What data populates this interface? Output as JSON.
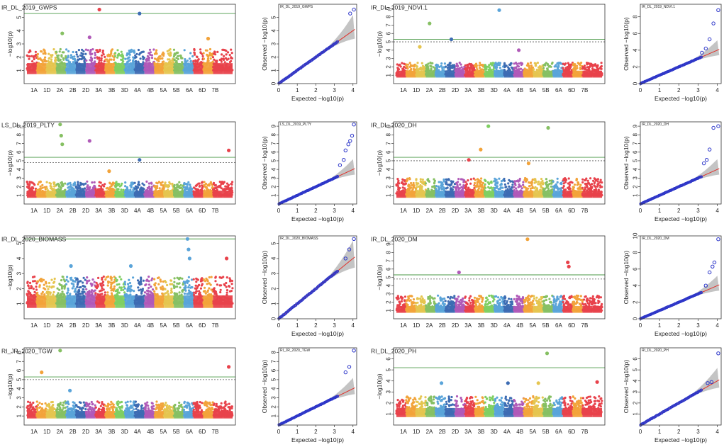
{
  "figure_title": "",
  "colors": {
    "chromosomes": [
      "#e8424b",
      "#f2a33a",
      "#e5c54f",
      "#86c063",
      "#5aa4d9",
      "#3d6cb3",
      "#b05ab8",
      "#e8424b",
      "#f2a33a",
      "#7fcf62",
      "#5aa4d9",
      "#3d6cb3",
      "#b05ab8",
      "#f2a33a",
      "#e5c54f",
      "#86c063",
      "#5aa4d9",
      "#e8424b",
      "#f2a33a",
      "#e8424b",
      "#e8424b"
    ],
    "threshold_green": "#4a9a46",
    "threshold_dotted": "#555555",
    "qq_points": "#2a34c9",
    "qq_line": "#e0302a",
    "qq_band": "#b5b5b5"
  },
  "chart_data": [
    {
      "type": "scatter",
      "subtype": "manhattan",
      "title": "IR_DL_2019_GWPS",
      "ylabel": "−log10(p)",
      "ylim": [
        0,
        6
      ],
      "yticks": [
        1,
        2,
        3,
        4,
        5
      ],
      "xlabels": [
        "1A",
        "1D",
        "2A",
        "2B",
        "2D",
        "3A",
        "3B",
        "3D",
        "4A",
        "4B",
        "5A",
        "5B",
        "6A",
        "6D",
        "7B"
      ],
      "threshold": 5.3,
      "suggestive": null,
      "background_max": 2.6,
      "peaks": [
        {
          "chr": 7,
          "value": 5.6
        },
        {
          "chr": 11,
          "value": 5.3
        },
        {
          "chr": 3,
          "value": 3.8
        },
        {
          "chr": 6,
          "value": 3.5
        },
        {
          "chr": 18,
          "value": 3.4
        }
      ]
    },
    {
      "type": "scatter",
      "subtype": "qq",
      "title": "IR_DL_2019_GWPS",
      "xlabel": "Expected −log10(p)",
      "ylabel": "Observed −log10(p)",
      "xlim": [
        0,
        4.2
      ],
      "ylim": [
        0,
        6
      ],
      "xticks": [
        0,
        1,
        2,
        3,
        4
      ],
      "yticks": [
        0,
        1,
        2,
        3,
        4,
        5
      ],
      "outliers": [
        [
          3.85,
          5.3
        ],
        [
          4.05,
          5.6
        ]
      ]
    },
    {
      "type": "scatter",
      "subtype": "manhattan",
      "title": "IR_DL_2019_NDVI.1",
      "ylabel": "−log10(p)",
      "ylim": [
        0,
        9.5
      ],
      "yticks": [
        1,
        2,
        3,
        4,
        5,
        6,
        7,
        8,
        9
      ],
      "xlabels": [
        "1A",
        "1D",
        "2A",
        "2B",
        "2D",
        "3A",
        "3B",
        "3D",
        "4A",
        "4B",
        "5A",
        "5B",
        "6A",
        "6D",
        "7B"
      ],
      "threshold": 5.3,
      "suggestive": 5.0,
      "background_max": 2.5,
      "peaks": [
        {
          "chr": 3,
          "value": 7.2
        },
        {
          "chr": 10,
          "value": 8.8
        },
        {
          "chr": 5,
          "value": 5.3
        },
        {
          "chr": 2,
          "value": 4.4
        },
        {
          "chr": 12,
          "value": 4.0
        }
      ]
    },
    {
      "type": "scatter",
      "subtype": "qq",
      "title": "IR_DL_2019_NDVI.1",
      "xlabel": "Expected −log10(p)",
      "ylabel": "Observed −log10(p)",
      "xlim": [
        0,
        4.2
      ],
      "ylim": [
        0,
        9.5
      ],
      "xticks": [
        0,
        1,
        2,
        3,
        4
      ],
      "yticks": [
        0,
        2,
        4,
        6,
        8
      ],
      "outliers": [
        [
          3.2,
          3.7
        ],
        [
          3.4,
          4.2
        ],
        [
          3.6,
          5.3
        ],
        [
          3.8,
          7.2
        ],
        [
          4.05,
          8.8
        ]
      ]
    },
    {
      "type": "scatter",
      "subtype": "manhattan",
      "title": "LS_DL_2019_PLTY",
      "ylabel": "−log10(p)",
      "ylim": [
        0,
        9.5
      ],
      "yticks": [
        1,
        2,
        3,
        4,
        5,
        6,
        7,
        8,
        9
      ],
      "xlabels": [
        "1A",
        "1D",
        "2A",
        "2B",
        "2D",
        "3A",
        "3B",
        "3D",
        "4A",
        "4B",
        "5A",
        "5B",
        "6A",
        "6D",
        "7B"
      ],
      "threshold": 5.4,
      "suggestive": 4.8,
      "background_max": 2.6,
      "peaks": [
        {
          "chr": 3,
          "value": 9.2
        },
        {
          "chr": 3,
          "value": 7.9
        },
        {
          "chr": 3,
          "value": 6.9
        },
        {
          "chr": 6,
          "value": 7.3
        },
        {
          "chr": 11,
          "value": 5.1
        },
        {
          "chr": 20,
          "value": 6.2
        },
        {
          "chr": 8,
          "value": 3.8
        }
      ]
    },
    {
      "type": "scatter",
      "subtype": "qq",
      "title": "LS_DL_2019_PLTY",
      "xlabel": "Expected −log10(p)",
      "ylabel": "Observed −log10(p)",
      "xlim": [
        0,
        4.2
      ],
      "ylim": [
        0,
        9.5
      ],
      "xticks": [
        0,
        1,
        2,
        3,
        4
      ],
      "yticks": [
        1,
        2,
        3,
        4,
        5,
        6,
        7,
        8,
        9
      ],
      "outliers": [
        [
          3.3,
          4.5
        ],
        [
          3.5,
          5.1
        ],
        [
          3.6,
          6.2
        ],
        [
          3.75,
          6.9
        ],
        [
          3.85,
          7.3
        ],
        [
          3.95,
          7.9
        ],
        [
          4.05,
          9.2
        ]
      ]
    },
    {
      "type": "scatter",
      "subtype": "manhattan",
      "title": "IR_DL_2020_DH",
      "ylabel": "−log10(p)",
      "ylim": [
        0,
        9.5
      ],
      "yticks": [
        1,
        2,
        3,
        4,
        5,
        6,
        7,
        8,
        9
      ],
      "xlabels": [
        "1A",
        "1D",
        "2A",
        "2B",
        "2D",
        "3A",
        "3B",
        "3D",
        "4A",
        "4B",
        "5A",
        "5B",
        "6A",
        "6D",
        "7B"
      ],
      "threshold": 5.4,
      "suggestive": 5.0,
      "background_max": 3.0,
      "peaks": [
        {
          "chr": 9,
          "value": 9.0
        },
        {
          "chr": 15,
          "value": 8.8
        },
        {
          "chr": 8,
          "value": 6.3
        },
        {
          "chr": 7,
          "value": 5.1
        },
        {
          "chr": 13,
          "value": 4.7
        }
      ]
    },
    {
      "type": "scatter",
      "subtype": "qq",
      "title": "IR_DL_2020_DH",
      "xlabel": "Expected −log10(p)",
      "ylabel": "Observed −log10(p)",
      "xlim": [
        0,
        4.2
      ],
      "ylim": [
        0,
        9.5
      ],
      "xticks": [
        0,
        1,
        2,
        3,
        4
      ],
      "yticks": [
        1,
        2,
        3,
        4,
        5,
        6,
        7,
        8,
        9
      ],
      "outliers": [
        [
          3.3,
          4.7
        ],
        [
          3.45,
          5.1
        ],
        [
          3.6,
          6.3
        ],
        [
          3.8,
          8.8
        ],
        [
          4.05,
          9.0
        ]
      ]
    },
    {
      "type": "scatter",
      "subtype": "manhattan",
      "title": "IR_DL_2020_BIOMASS",
      "ylabel": "−log10(p)",
      "ylim": [
        0,
        5.5
      ],
      "yticks": [
        1,
        2,
        3,
        4,
        5
      ],
      "xlabels": [
        "1A",
        "1D",
        "2A",
        "2B",
        "2D",
        "3A",
        "3B",
        "3D",
        "4A",
        "4B",
        "5A",
        "5B",
        "6A",
        "6D",
        "7B"
      ],
      "threshold": 5.3,
      "suggestive": null,
      "background_max": 2.8,
      "peaks": [
        {
          "chr": 16,
          "value": 5.3
        },
        {
          "chr": 16,
          "value": 4.6
        },
        {
          "chr": 16,
          "value": 4.0
        },
        {
          "chr": 20,
          "value": 4.0
        },
        {
          "chr": 4,
          "value": 3.5
        },
        {
          "chr": 10,
          "value": 3.5
        }
      ]
    },
    {
      "type": "scatter",
      "subtype": "qq",
      "title": "IR_DL_2020_BIOMASS",
      "xlabel": "Expected −log10(p)",
      "ylabel": "Observed −log10(p)",
      "xlim": [
        0,
        4.2
      ],
      "ylim": [
        0,
        5.5
      ],
      "xticks": [
        0,
        1,
        2,
        3,
        4
      ],
      "yticks": [
        0,
        1,
        2,
        3,
        4,
        5
      ],
      "outliers": [
        [
          3.6,
          4.0
        ],
        [
          3.8,
          4.6
        ],
        [
          4.05,
          5.3
        ]
      ]
    },
    {
      "type": "scatter",
      "subtype": "manhattan",
      "title": "IR_DL_2020_DM",
      "ylabel": "−log10(p)",
      "ylim": [
        0,
        10
      ],
      "yticks": [
        1,
        2,
        3,
        4,
        5,
        6,
        7,
        8,
        9
      ],
      "xlabels": [
        "1A",
        "1D",
        "2A",
        "2B",
        "2D",
        "3A",
        "3B",
        "3D",
        "4A",
        "4B",
        "5A",
        "5B",
        "6A",
        "6D",
        "7B"
      ],
      "threshold": 5.3,
      "suggestive": 4.8,
      "background_max": 2.8,
      "peaks": [
        {
          "chr": 13,
          "value": 9.6
        },
        {
          "chr": 17,
          "value": 6.8
        },
        {
          "chr": 17,
          "value": 6.3
        },
        {
          "chr": 6,
          "value": 5.6
        }
      ]
    },
    {
      "type": "scatter",
      "subtype": "qq",
      "title": "IR_DL_2020_DM",
      "xlabel": "Expected −log10(p)",
      "ylabel": "Observed −log10(p)",
      "xlim": [
        0,
        4.2
      ],
      "ylim": [
        0,
        10
      ],
      "xticks": [
        0,
        1,
        2,
        3,
        4
      ],
      "yticks": [
        0,
        2,
        4,
        6,
        8,
        10
      ],
      "outliers": [
        [
          3.4,
          4.0
        ],
        [
          3.6,
          5.6
        ],
        [
          3.75,
          6.3
        ],
        [
          3.85,
          6.8
        ],
        [
          4.05,
          9.6
        ]
      ]
    },
    {
      "type": "scatter",
      "subtype": "manhattan",
      "title": "RI_JR_2020_TGW",
      "ylabel": "−log10(p)",
      "ylim": [
        0,
        8.5
      ],
      "yticks": [
        1,
        2,
        3,
        4,
        5,
        6,
        7,
        8
      ],
      "xlabels": [
        "1A",
        "1D",
        "2A",
        "2B",
        "2D",
        "3A",
        "3B",
        "3D",
        "4A",
        "4B",
        "5A",
        "5B",
        "6A",
        "6D",
        "7B"
      ],
      "threshold": 5.3,
      "suggestive": 5.0,
      "background_max": 2.6,
      "peaks": [
        {
          "chr": 3,
          "value": 8.2
        },
        {
          "chr": 1,
          "value": 5.8
        },
        {
          "chr": 20,
          "value": 6.4
        },
        {
          "chr": 4,
          "value": 3.8
        }
      ]
    },
    {
      "type": "scatter",
      "subtype": "qq",
      "title": "RI_JR_2020_TGW",
      "xlabel": "Expected −log10(p)",
      "ylabel": "Observed −log10(p)",
      "xlim": [
        0,
        4.2
      ],
      "ylim": [
        0,
        8.5
      ],
      "xticks": [
        0,
        1,
        2,
        3,
        4
      ],
      "yticks": [
        1,
        2,
        3,
        4,
        5,
        6,
        7,
        8
      ],
      "outliers": [
        [
          3.6,
          5.8
        ],
        [
          3.8,
          6.4
        ],
        [
          4.05,
          8.2
        ]
      ]
    },
    {
      "type": "scatter",
      "subtype": "manhattan",
      "title": "RI_DL_2020_PH",
      "ylabel": "−log10(p)",
      "ylim": [
        0,
        7
      ],
      "yticks": [
        1,
        2,
        3,
        4,
        5,
        6
      ],
      "xlabels": [
        "1A",
        "1D",
        "2A",
        "2B",
        "2D",
        "3A",
        "3B",
        "3D",
        "4A",
        "4B",
        "5A",
        "5B",
        "6A",
        "6D",
        "7B"
      ],
      "threshold": 5.2,
      "suggestive": null,
      "background_max": 2.6,
      "peaks": [
        {
          "chr": 15,
          "value": 6.5
        },
        {
          "chr": 20,
          "value": 3.9
        },
        {
          "chr": 4,
          "value": 3.8
        },
        {
          "chr": 11,
          "value": 3.8
        },
        {
          "chr": 14,
          "value": 3.8
        }
      ]
    },
    {
      "type": "scatter",
      "subtype": "qq",
      "title": "RI_DL_2020_PH",
      "xlabel": "Expected −log10(p)",
      "ylabel": "Observed −log10(p)",
      "xlim": [
        0,
        4.2
      ],
      "ylim": [
        0,
        7
      ],
      "xticks": [
        0,
        1,
        2,
        3,
        4
      ],
      "yticks": [
        1,
        2,
        3,
        4,
        5,
        6
      ],
      "outliers": [
        [
          3.5,
          3.8
        ],
        [
          3.7,
          3.9
        ],
        [
          4.05,
          6.5
        ]
      ]
    }
  ]
}
